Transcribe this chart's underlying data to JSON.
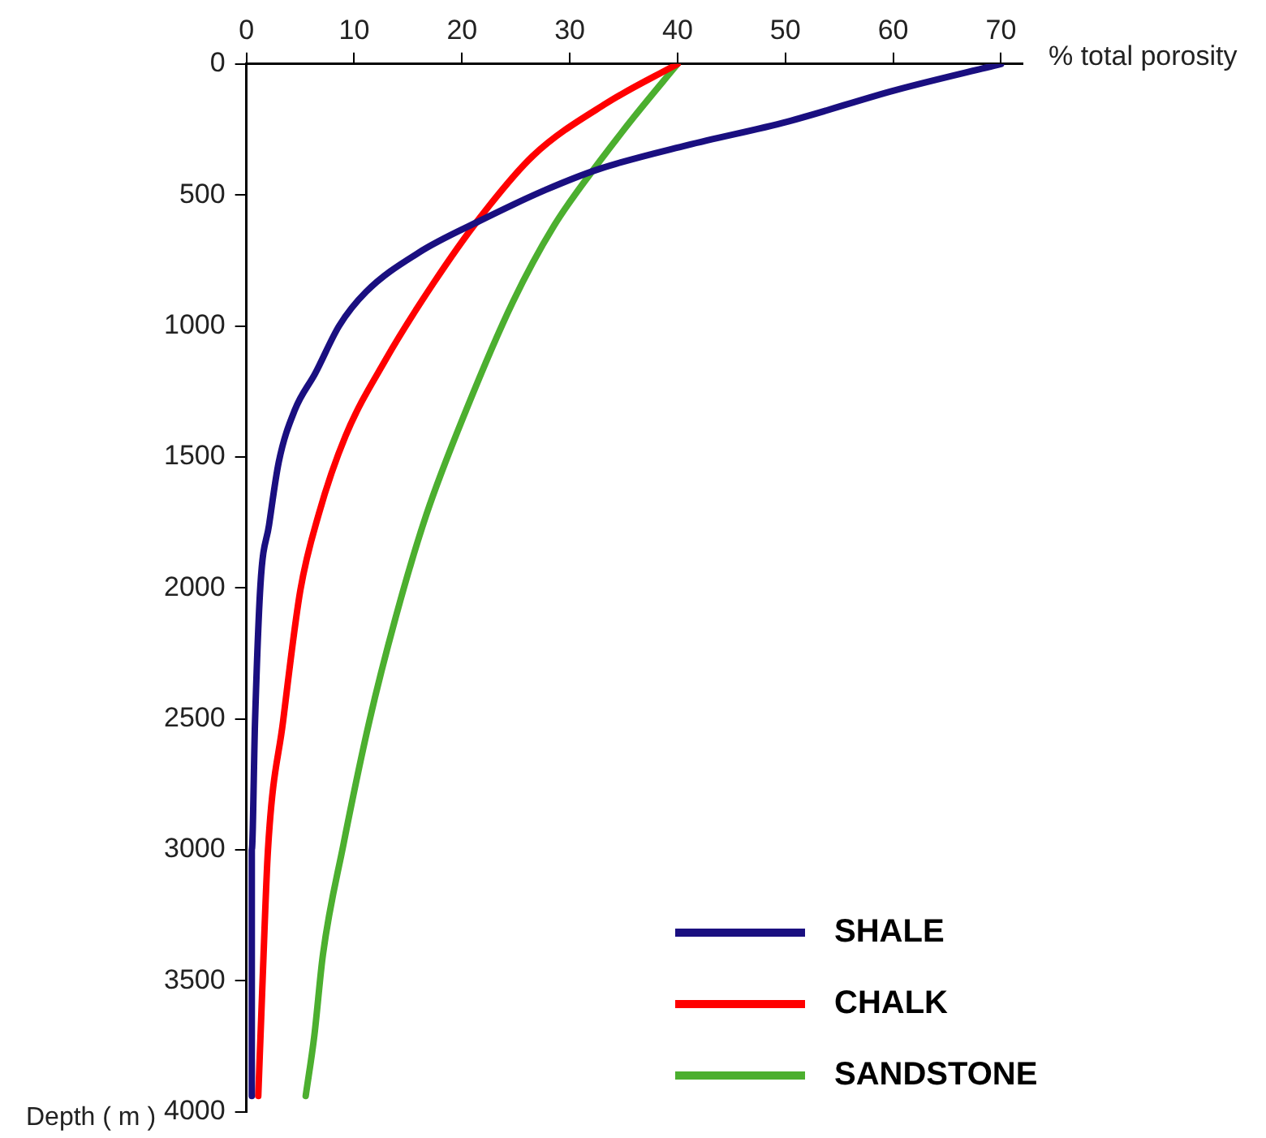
{
  "chart_data": {
    "type": "line",
    "xlabel": "% total porosity",
    "ylabel": "Depth ( m )",
    "xlim": [
      0,
      72
    ],
    "xticks": [
      0,
      10,
      20,
      30,
      40,
      50,
      60,
      70
    ],
    "ylim": [
      4000,
      0
    ],
    "yticks": [
      0,
      500,
      1000,
      1500,
      2000,
      2500,
      3000,
      3500,
      4000
    ],
    "grid": false,
    "legend": "bottom right",
    "marker": "none",
    "line_style": "solid",
    "series": [
      {
        "name": "SHALE",
        "color": "#1a0f80",
        "x": [
          70,
          60.2,
          50.2,
          40.9,
          32.8,
          27.8,
          21.6,
          16,
          11.1,
          8.6,
          6.4,
          4.5,
          3,
          2.1,
          1.3,
          0.8,
          0.5,
          0.5
        ],
        "values": [
          0,
          100,
          220,
          310,
          400,
          480,
          600,
          720,
          870,
          1000,
          1180,
          1320,
          1520,
          1760,
          1990,
          2510,
          3000,
          3940
        ]
      },
      {
        "name": "CHALK",
        "color": "#ff0000",
        "x": [
          40,
          33.4,
          26.6,
          21.6,
          17.3,
          12.9,
          9.2,
          6.7,
          5,
          3.4,
          2,
          1.5,
          1.1
        ],
        "values": [
          0,
          150,
          350,
          590,
          840,
          1130,
          1420,
          1720,
          2010,
          2510,
          3000,
          3500,
          3940
        ]
      },
      {
        "name": "SANDSTONE",
        "color": "#4caf2f",
        "x": [
          40,
          36,
          32.8,
          28.5,
          24.7,
          20.4,
          16.7,
          14,
          11.4,
          9,
          7.1,
          6.3,
          5.5
        ],
        "values": [
          0,
          200,
          370,
          620,
          910,
          1320,
          1720,
          2090,
          2510,
          2980,
          3400,
          3710,
          3940
        ]
      }
    ]
  }
}
